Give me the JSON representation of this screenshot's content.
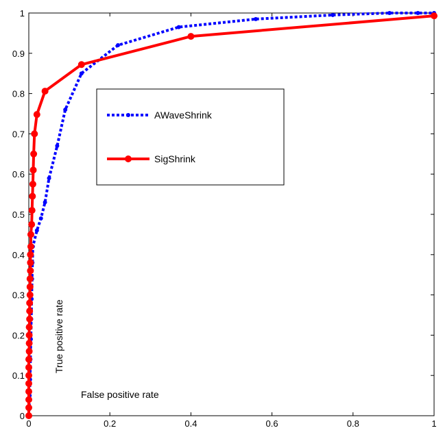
{
  "chart_data": {
    "type": "line",
    "xlabel": "False positive rate",
    "ylabel": "True positive rate",
    "xlim": [
      0,
      1
    ],
    "ylim": [
      0,
      1
    ],
    "x_ticks": [
      "0",
      "0.2",
      "0.4",
      "0.6",
      "0.8",
      "1"
    ],
    "y_ticks": [
      "0",
      "0.1",
      "0.2",
      "0.3",
      "0.4",
      "0.5",
      "0.6",
      "0.7",
      "0.8",
      "0.9",
      "1"
    ],
    "grid": false,
    "legend_position": "upper-left inside plot",
    "series": [
      {
        "name": "AWaveShrink",
        "color": "#0000ff",
        "line_style": "dotted",
        "marker": "circle-small",
        "points": [
          [
            0,
            0
          ],
          [
            0.001,
            0.02
          ],
          [
            0.002,
            0.05
          ],
          [
            0.003,
            0.09
          ],
          [
            0.004,
            0.14
          ],
          [
            0.005,
            0.19
          ],
          [
            0.006,
            0.24
          ],
          [
            0.007,
            0.29
          ],
          [
            0.008,
            0.34
          ],
          [
            0.009,
            0.38
          ],
          [
            0.01,
            0.42
          ],
          [
            0.02,
            0.46
          ],
          [
            0.03,
            0.49
          ],
          [
            0.04,
            0.53
          ],
          [
            0.05,
            0.59
          ],
          [
            0.07,
            0.67
          ],
          [
            0.09,
            0.76
          ],
          [
            0.13,
            0.85
          ],
          [
            0.22,
            0.92
          ],
          [
            0.37,
            0.965
          ],
          [
            0.56,
            0.985
          ],
          [
            0.75,
            0.995
          ],
          [
            0.89,
            1.0
          ],
          [
            0.96,
            1.0
          ],
          [
            1.0,
            1.0
          ]
        ]
      },
      {
        "name": "SigShrink",
        "color": "#ff0000",
        "line_style": "solid",
        "marker": "circle",
        "points": [
          [
            0,
            0
          ],
          [
            0,
            0.02
          ],
          [
            0,
            0.04
          ],
          [
            0,
            0.06
          ],
          [
            0,
            0.08
          ],
          [
            0,
            0.1
          ],
          [
            0,
            0.12
          ],
          [
            0,
            0.14
          ],
          [
            0.001,
            0.16
          ],
          [
            0.001,
            0.18
          ],
          [
            0.001,
            0.2
          ],
          [
            0.001,
            0.22
          ],
          [
            0.002,
            0.24
          ],
          [
            0.002,
            0.26
          ],
          [
            0.002,
            0.28
          ],
          [
            0.003,
            0.3
          ],
          [
            0.003,
            0.32
          ],
          [
            0.003,
            0.34
          ],
          [
            0.004,
            0.36
          ],
          [
            0.004,
            0.38
          ],
          [
            0.004,
            0.4
          ],
          [
            0.005,
            0.42
          ],
          [
            0.005,
            0.45
          ],
          [
            0.007,
            0.475
          ],
          [
            0.008,
            0.51
          ],
          [
            0.009,
            0.545
          ],
          [
            0.01,
            0.575
          ],
          [
            0.011,
            0.61
          ],
          [
            0.012,
            0.65
          ],
          [
            0.014,
            0.7
          ],
          [
            0.02,
            0.748
          ],
          [
            0.04,
            0.806
          ],
          [
            0.13,
            0.872
          ],
          [
            0.4,
            0.942
          ],
          [
            1.0,
            0.993
          ]
        ]
      }
    ]
  }
}
